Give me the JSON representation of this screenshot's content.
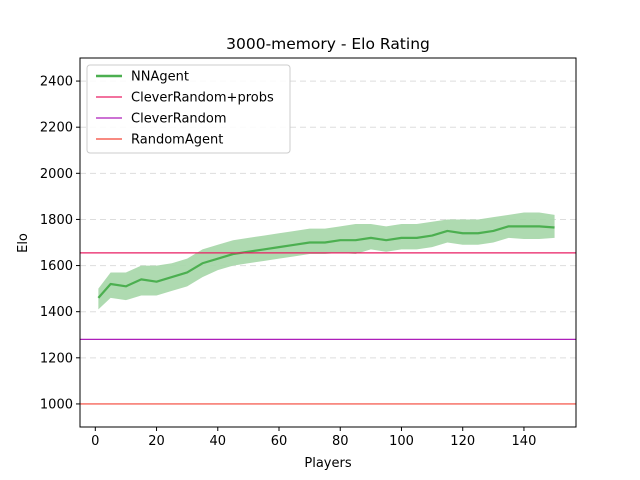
{
  "chart_data": {
    "type": "line",
    "title": "3000-memory - Elo Rating",
    "xlabel": "Players",
    "ylabel": "Elo",
    "xlim": [
      -5,
      157
    ],
    "ylim": [
      900,
      2500
    ],
    "xticks": [
      0,
      20,
      40,
      60,
      80,
      100,
      120,
      140
    ],
    "yticks": [
      1000,
      1200,
      1400,
      1600,
      1800,
      2000,
      2200,
      2400
    ],
    "grid": "horizontal-dashed",
    "legend_position": "top-left",
    "series": [
      {
        "name": "NNAgent",
        "color": "#4caf50",
        "band_color": "#a5d6a7",
        "x": [
          1,
          5,
          10,
          15,
          20,
          25,
          30,
          35,
          40,
          45,
          50,
          55,
          60,
          65,
          70,
          75,
          80,
          85,
          90,
          95,
          100,
          105,
          110,
          115,
          120,
          125,
          130,
          135,
          140,
          145,
          150
        ],
        "y": [
          1460,
          1520,
          1510,
          1540,
          1530,
          1550,
          1570,
          1610,
          1630,
          1650,
          1660,
          1670,
          1680,
          1690,
          1700,
          1700,
          1710,
          1710,
          1720,
          1710,
          1720,
          1720,
          1730,
          1750,
          1740,
          1740,
          1750,
          1770,
          1770,
          1770,
          1765
        ],
        "y_low": [
          1410,
          1460,
          1450,
          1470,
          1470,
          1490,
          1510,
          1550,
          1580,
          1600,
          1610,
          1620,
          1630,
          1640,
          1650,
          1650,
          1655,
          1650,
          1670,
          1660,
          1670,
          1670,
          1680,
          1700,
          1690,
          1690,
          1700,
          1720,
          1715,
          1715,
          1720
        ],
        "y_high": [
          1500,
          1570,
          1570,
          1600,
          1600,
          1610,
          1630,
          1670,
          1690,
          1710,
          1720,
          1730,
          1740,
          1750,
          1760,
          1760,
          1770,
          1780,
          1780,
          1770,
          1780,
          1780,
          1790,
          1800,
          1800,
          1800,
          1810,
          1820,
          1830,
          1830,
          1820
        ]
      },
      {
        "name": "CleverRandom+probs",
        "type": "hline",
        "color": "#e91e63",
        "y": 1655
      },
      {
        "name": "CleverRandom",
        "type": "hline",
        "color": "#ad1fba",
        "y": 1280
      },
      {
        "name": "RandomAgent",
        "type": "hline",
        "color": "#f44336",
        "y": 1000
      }
    ]
  }
}
